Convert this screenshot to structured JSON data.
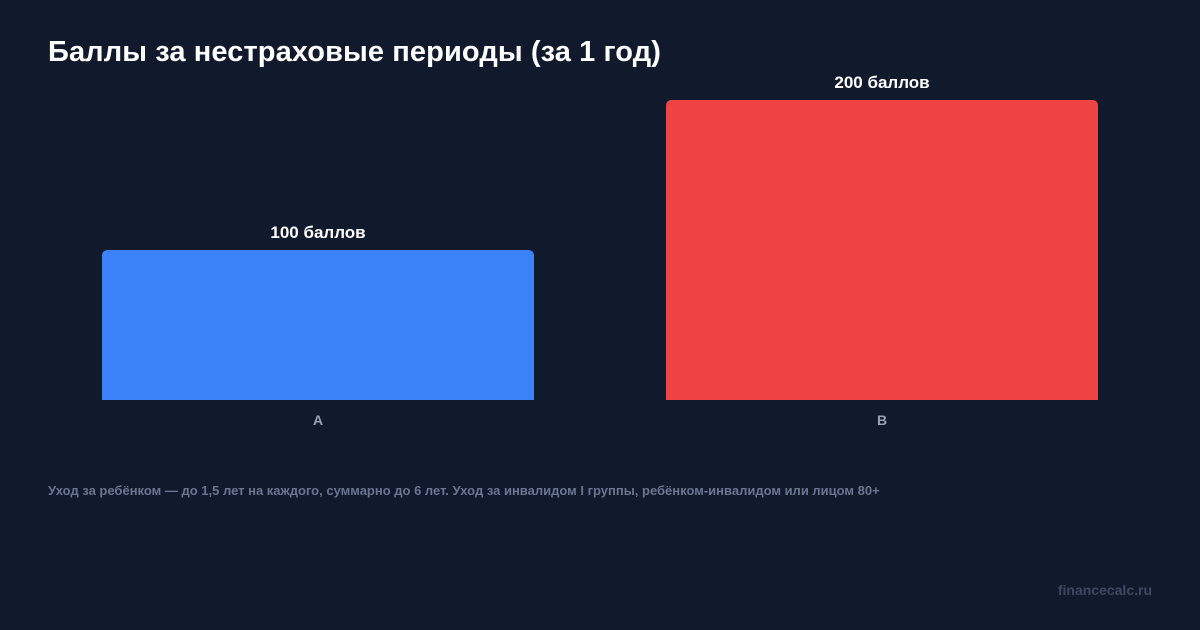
{
  "chart_data": {
    "type": "bar",
    "title": "Баллы за нестраховые периоды (за 1 год)",
    "categories": [
      "A",
      "B"
    ],
    "values": [
      100,
      200
    ],
    "data_labels": [
      "100 баллов",
      "200 баллов"
    ],
    "colors": [
      "#3b82f6",
      "#ef4444"
    ],
    "ylim": [
      0,
      200
    ],
    "grid": false,
    "legend": "none",
    "xlabel": "",
    "ylabel": ""
  },
  "footnote": "Уход за ребёнком — до 1,5 лет на каждого, суммарно до 6 лет. Уход за инвалидом I группы, ребёнком-инвалидом или лицом 80+",
  "watermark": "financecalc.ru",
  "colors": {
    "background": "#111a2c",
    "title": "#ffffff",
    "category_label": "#9aa3b5",
    "footnote": "#6b7590",
    "watermark": "#3e4860"
  }
}
